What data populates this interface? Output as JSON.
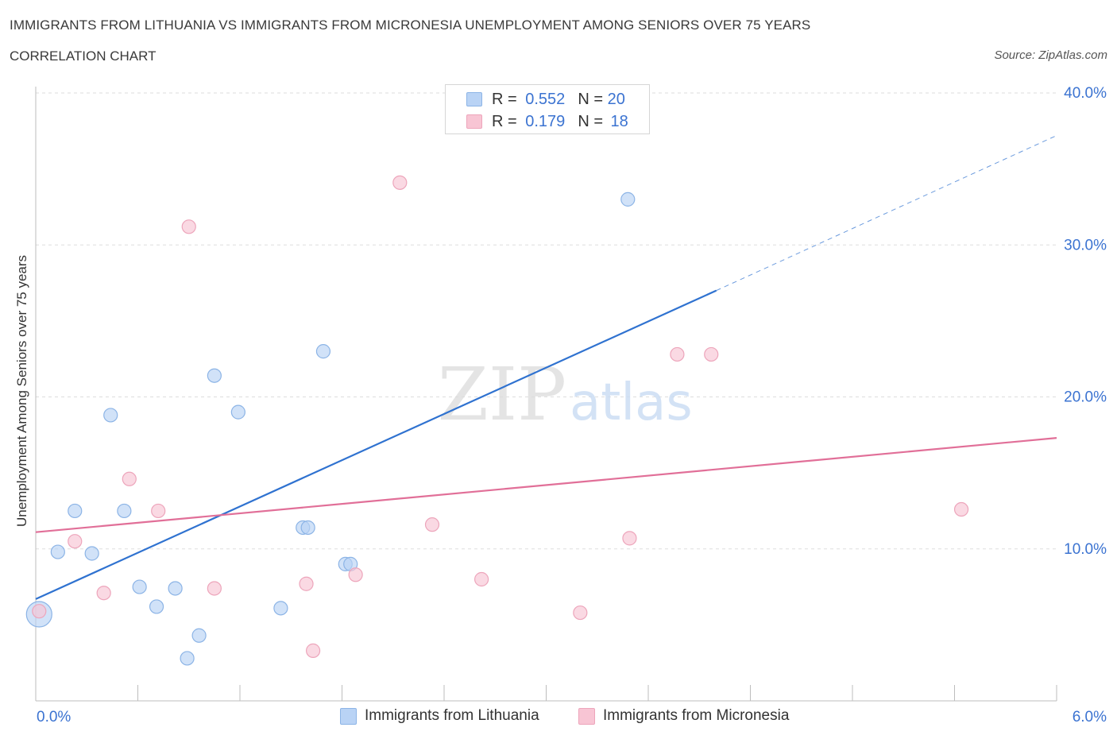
{
  "header": {
    "title": "IMMIGRANTS FROM LITHUANIA VS IMMIGRANTS FROM MICRONESIA UNEMPLOYMENT AMONG SENIORS OVER 75 YEARS",
    "subtitle": "CORRELATION CHART",
    "source": "Source: ZipAtlas.com"
  },
  "legend": {
    "lithuania": {
      "r_label": "R =",
      "r_value": "0.552",
      "n_label": "N =",
      "n_value": "20"
    },
    "micronesia": {
      "r_label": "R =",
      "r_value": "0.179",
      "n_label": "N =",
      "n_value": "18"
    }
  },
  "watermark": {
    "zip": "ZIP",
    "atlas": "atlas"
  },
  "colors": {
    "lithuania_fill": "#b9d3f5",
    "lithuania_stroke": "#8cb4e6",
    "lithuania_line": "#2f72d0",
    "micronesia_fill": "#f8c5d4",
    "micronesia_stroke": "#eda5bb",
    "micronesia_line": "#e16f98",
    "axis_text": "#3b73d1",
    "grid": "#dedede"
  },
  "chart_data": {
    "type": "scatter",
    "title": "IMMIGRANTS FROM LITHUANIA VS IMMIGRANTS FROM MICRONESIA UNEMPLOYMENT AMONG SENIORS OVER 75 YEARS",
    "xlabel": "",
    "ylabel": "Unemployment Among Seniors over 75 years",
    "xlim": [
      0,
      6
    ],
    "ylim": [
      0,
      40
    ],
    "x_tick_labels": [
      "0.0%",
      "6.0%"
    ],
    "y_ticks": [
      10,
      20,
      30,
      40
    ],
    "y_tick_labels": [
      "10.0%",
      "20.0%",
      "30.0%",
      "40.0%"
    ],
    "series": [
      {
        "name": "Immigrants from Lithuania",
        "points": [
          {
            "x": 0.02,
            "y": 5.7,
            "big": true
          },
          {
            "x": 0.13,
            "y": 9.8
          },
          {
            "x": 0.23,
            "y": 12.5
          },
          {
            "x": 0.33,
            "y": 9.7
          },
          {
            "x": 0.44,
            "y": 18.8
          },
          {
            "x": 0.52,
            "y": 12.5
          },
          {
            "x": 0.61,
            "y": 7.5
          },
          {
            "x": 0.71,
            "y": 6.2
          },
          {
            "x": 0.82,
            "y": 7.4
          },
          {
            "x": 0.89,
            "y": 2.8
          },
          {
            "x": 0.96,
            "y": 4.3
          },
          {
            "x": 1.05,
            "y": 21.4
          },
          {
            "x": 1.19,
            "y": 19.0
          },
          {
            "x": 1.44,
            "y": 6.1
          },
          {
            "x": 1.57,
            "y": 11.4
          },
          {
            "x": 1.6,
            "y": 11.4
          },
          {
            "x": 1.69,
            "y": 23.0
          },
          {
            "x": 1.82,
            "y": 9.0
          },
          {
            "x": 1.85,
            "y": 9.0
          },
          {
            "x": 3.48,
            "y": 33.0
          }
        ],
        "trend": {
          "x0": 0.0,
          "y0": 6.7,
          "x1": 4.0,
          "y1": 27.0,
          "dashed_to_x": 6.0,
          "dashed_to_y": 37.2
        }
      },
      {
        "name": "Immigrants from Micronesia",
        "points": [
          {
            "x": 0.02,
            "y": 5.9
          },
          {
            "x": 0.23,
            "y": 10.5
          },
          {
            "x": 0.4,
            "y": 7.1
          },
          {
            "x": 0.55,
            "y": 14.6
          },
          {
            "x": 0.72,
            "y": 12.5
          },
          {
            "x": 0.9,
            "y": 31.2
          },
          {
            "x": 1.05,
            "y": 7.4
          },
          {
            "x": 1.59,
            "y": 7.7
          },
          {
            "x": 1.63,
            "y": 3.3
          },
          {
            "x": 1.88,
            "y": 8.3
          },
          {
            "x": 2.14,
            "y": 34.1
          },
          {
            "x": 2.33,
            "y": 11.6
          },
          {
            "x": 2.62,
            "y": 8.0
          },
          {
            "x": 3.2,
            "y": 5.8
          },
          {
            "x": 3.49,
            "y": 10.7
          },
          {
            "x": 3.77,
            "y": 22.8
          },
          {
            "x": 3.97,
            "y": 22.8
          },
          {
            "x": 5.44,
            "y": 12.6
          }
        ],
        "trend": {
          "x0": 0.0,
          "y0": 11.1,
          "x1": 6.0,
          "y1": 17.3
        }
      }
    ],
    "legend_position": "bottom-center"
  }
}
